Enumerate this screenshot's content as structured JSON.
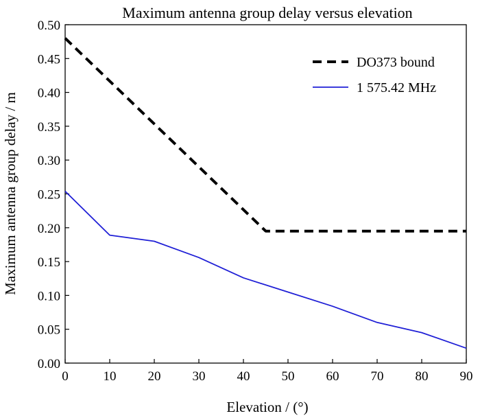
{
  "chart_data": {
    "type": "line",
    "title": "Maximum antenna group delay versus elevation",
    "xlabel": "Elevation / (°)",
    "ylabel": "Maximum antenna group delay / m",
    "xlim": [
      0,
      90
    ],
    "ylim": [
      0,
      0.5
    ],
    "xticks": [
      "0",
      "10",
      "20",
      "30",
      "40",
      "50",
      "60",
      "70",
      "80",
      "90"
    ],
    "yticks": [
      "0.00",
      "0.05",
      "0.10",
      "0.15",
      "0.20",
      "0.25",
      "0.30",
      "0.35",
      "0.40",
      "0.45",
      "0.50"
    ],
    "grid": false,
    "legend_position": "top-right",
    "series": [
      {
        "name": "DO373 bound",
        "color": "#000000",
        "style": "dashed",
        "x": [
          0,
          45,
          90
        ],
        "y": [
          0.48,
          0.195,
          0.195
        ]
      },
      {
        "name": "1 575.42 MHz",
        "color": "#1f1fd6",
        "style": "solid",
        "x": [
          0,
          10,
          20,
          30,
          40,
          50,
          60,
          70,
          80,
          90
        ],
        "y": [
          0.254,
          0.189,
          0.18,
          0.156,
          0.126,
          0.105,
          0.084,
          0.06,
          0.045,
          0.022
        ]
      }
    ]
  }
}
